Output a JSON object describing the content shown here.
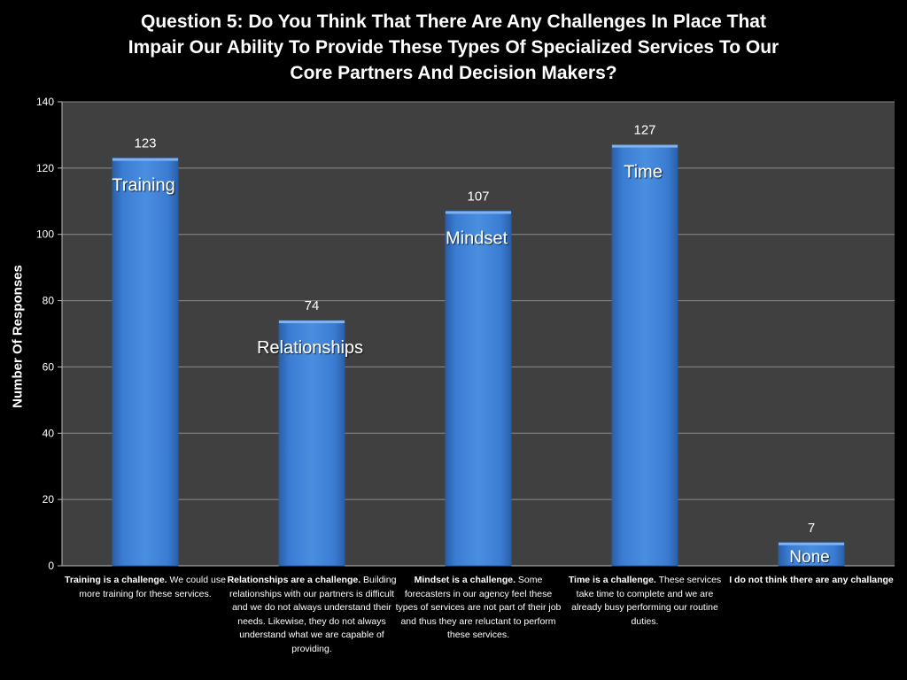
{
  "chart_data": {
    "type": "bar",
    "title_lines": [
      "Question 5: Do You Think That There Are Any Challenges In Place That",
      "Impair Our Ability To Provide These Types Of Specialized Services To Our",
      "Core Partners And Decision Makers?"
    ],
    "ylabel": "Number Of Responses",
    "ylim": [
      0,
      140
    ],
    "yticks": [
      0,
      20,
      40,
      60,
      80,
      100,
      120,
      140
    ],
    "grid": true,
    "categories": [
      {
        "bold": "Training is a challenge.",
        "text": " We could use more training for these services."
      },
      {
        "bold": "Relationships are a challenge.",
        "text": " Building relationships with our partners is difficult and we do not always understand their needs. Likewise, they do not always understand what we are capable of providing."
      },
      {
        "bold": "Mindset is a challenge.",
        "text": " Some forecasters in our agency feel these types of services are not part of their job and thus they are reluctant to perform these services."
      },
      {
        "bold": "Time is a challenge.",
        "text": " These services take time to complete and we are already busy performing our routine duties."
      },
      {
        "bold": "I do not think there are any challange",
        "text": ""
      }
    ],
    "values": [
      123,
      74,
      107,
      127,
      7
    ],
    "bar_labels": [
      "Training",
      "Relationships",
      "Mindset",
      "Time",
      "None"
    ],
    "colors": {
      "bar": "#3b7dd0",
      "plot_bg": "#404040",
      "grid": "#8c8c8c"
    }
  }
}
